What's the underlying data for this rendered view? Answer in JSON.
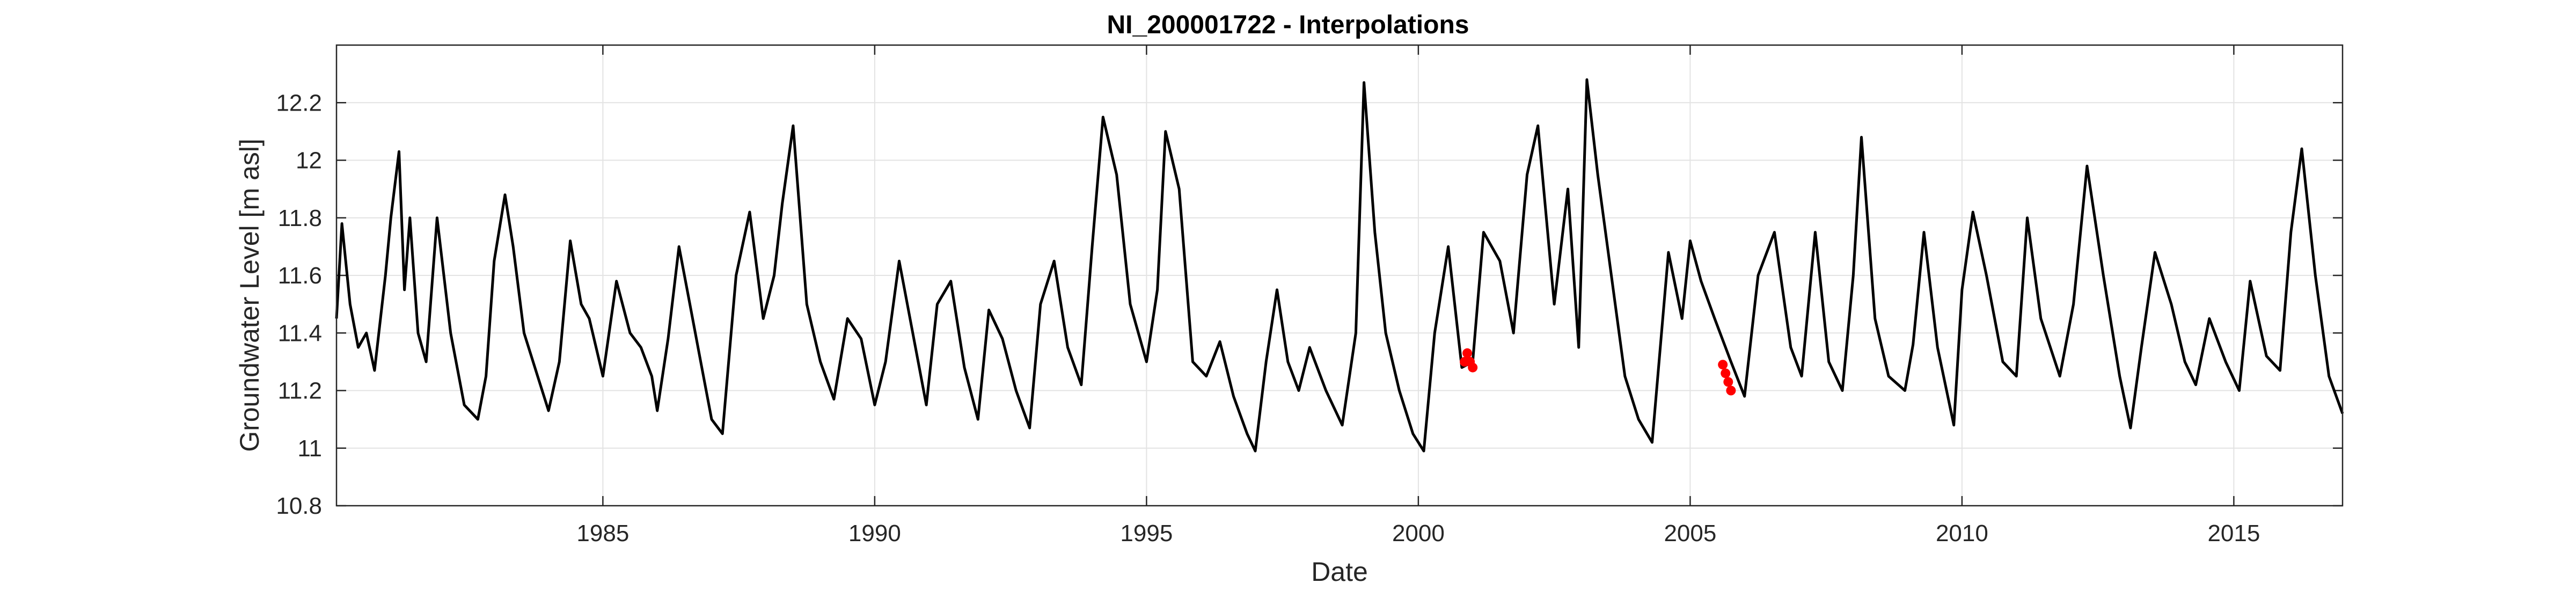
{
  "chart_data": {
    "type": "line",
    "title": "NI_200001722 - Interpolations",
    "xlabel": "Date",
    "ylabel": "Groundwater Level [m asl]",
    "xlim": [
      1980.1,
      2017.0
    ],
    "ylim": [
      10.8,
      12.4
    ],
    "x_ticks": [
      1985,
      1990,
      1995,
      2000,
      2005,
      2010,
      2015
    ],
    "y_ticks": [
      10.8,
      11.0,
      11.2,
      11.4,
      11.6,
      11.8,
      12.0,
      12.2
    ],
    "y_tick_labels": [
      "10.8",
      "11",
      "11.2",
      "11.4",
      "11.6",
      "11.8",
      "12",
      "12.2"
    ],
    "grid": true,
    "series": [
      {
        "color": "#000000",
        "style": "line",
        "x": [
          1980.1,
          1980.2,
          1980.35,
          1980.5,
          1980.65,
          1980.8,
          1981.0,
          1981.1,
          1981.25,
          1981.35,
          1981.45,
          1981.6,
          1981.75,
          1981.95,
          1982.2,
          1982.45,
          1982.7,
          1982.85,
          1983.0,
          1983.2,
          1983.35,
          1983.55,
          1983.8,
          1984.0,
          1984.2,
          1984.4,
          1984.6,
          1984.75,
          1985.0,
          1985.25,
          1985.5,
          1985.7,
          1985.9,
          1986.0,
          1986.2,
          1986.4,
          1986.6,
          1986.8,
          1987.0,
          1987.2,
          1987.45,
          1987.7,
          1987.95,
          1988.15,
          1988.3,
          1988.5,
          1988.75,
          1989.0,
          1989.25,
          1989.5,
          1989.75,
          1990.0,
          1990.2,
          1990.45,
          1990.7,
          1990.95,
          1991.15,
          1991.4,
          1991.65,
          1991.9,
          1992.1,
          1992.35,
          1992.6,
          1992.85,
          1993.05,
          1993.3,
          1993.55,
          1993.8,
          1994.0,
          1994.2,
          1994.45,
          1994.7,
          1995.0,
          1995.2,
          1995.35,
          1995.6,
          1995.85,
          1996.1,
          1996.35,
          1996.6,
          1996.85,
          1997.0,
          1997.2,
          1997.4,
          1997.6,
          1997.8,
          1998.0,
          1998.3,
          1998.6,
          1998.85,
          1999.0,
          1999.2,
          1999.4,
          1999.65,
          1999.9,
          2000.1,
          2000.3,
          2000.55,
          2000.8,
          2001.0,
          2001.2,
          2001.5,
          2001.75,
          2002.0,
          2002.2,
          2002.5,
          2002.75,
          2002.95,
          2003.1,
          2003.3,
          2003.55,
          2003.8,
          2004.05,
          2004.3,
          2004.6,
          2004.85,
          2005.0,
          2005.2,
          2005.45,
          2005.75,
          2006.0,
          2006.25,
          2006.55,
          2006.85,
          2007.05,
          2007.3,
          2007.55,
          2007.8,
          2008.0,
          2008.15,
          2008.4,
          2008.65,
          2008.95,
          2009.1,
          2009.3,
          2009.55,
          2009.85,
          2010.0,
          2010.2,
          2010.45,
          2010.75,
          2011.0,
          2011.2,
          2011.45,
          2011.8,
          2012.05,
          2012.3,
          2012.6,
          2012.9,
          2013.1,
          2013.3,
          2013.55,
          2013.85,
          2014.1,
          2014.3,
          2014.55,
          2014.85,
          2015.1,
          2015.3,
          2015.6,
          2015.85,
          2016.05,
          2016.25,
          2016.5,
          2016.75,
          2017.0
        ],
        "values": [
          11.45,
          11.78,
          11.5,
          11.35,
          11.4,
          11.27,
          11.6,
          11.8,
          12.03,
          11.55,
          11.8,
          11.4,
          11.3,
          11.8,
          11.4,
          11.15,
          11.1,
          11.25,
          11.65,
          11.88,
          11.7,
          11.4,
          11.25,
          11.13,
          11.3,
          11.72,
          11.5,
          11.45,
          11.25,
          11.58,
          11.4,
          11.35,
          11.25,
          11.13,
          11.38,
          11.7,
          11.5,
          11.3,
          11.1,
          11.05,
          11.6,
          11.82,
          11.45,
          11.6,
          11.85,
          12.12,
          11.5,
          11.3,
          11.17,
          11.45,
          11.38,
          11.15,
          11.3,
          11.65,
          11.4,
          11.15,
          11.5,
          11.58,
          11.28,
          11.1,
          11.48,
          11.38,
          11.2,
          11.07,
          11.5,
          11.65,
          11.35,
          11.22,
          11.7,
          12.15,
          11.95,
          11.5,
          11.3,
          11.55,
          12.1,
          11.9,
          11.3,
          11.25,
          11.37,
          11.18,
          11.05,
          10.99,
          11.3,
          11.55,
          11.3,
          11.2,
          11.35,
          11.2,
          11.08,
          11.4,
          12.27,
          11.75,
          11.4,
          11.2,
          11.05,
          10.99,
          11.4,
          11.7,
          11.28,
          11.3,
          11.75,
          11.65,
          11.4,
          11.95,
          12.12,
          11.5,
          11.9,
          11.35,
          12.28,
          11.95,
          11.6,
          11.25,
          11.1,
          11.02,
          11.68,
          11.45,
          11.72,
          11.58,
          11.45,
          11.3,
          11.18,
          11.6,
          11.75,
          11.35,
          11.25,
          11.75,
          11.3,
          11.2,
          11.6,
          12.08,
          11.45,
          11.25,
          11.2,
          11.36,
          11.75,
          11.35,
          11.08,
          11.55,
          11.82,
          11.6,
          11.3,
          11.25,
          11.8,
          11.45,
          11.25,
          11.5,
          11.98,
          11.6,
          11.25,
          11.07,
          11.35,
          11.68,
          11.5,
          11.3,
          11.22,
          11.45,
          11.3,
          11.2,
          11.58,
          11.32,
          11.27,
          11.75,
          12.04,
          11.6,
          11.25,
          11.12
        ]
      },
      {
        "color": "#ff0000",
        "style": "markers",
        "x": [
          2000.85,
          2000.9,
          2000.95,
          2001.0,
          2005.6,
          2005.65,
          2005.7,
          2005.75
        ],
        "values": [
          11.3,
          11.33,
          11.3,
          11.28,
          11.29,
          11.26,
          11.23,
          11.2
        ]
      }
    ]
  }
}
